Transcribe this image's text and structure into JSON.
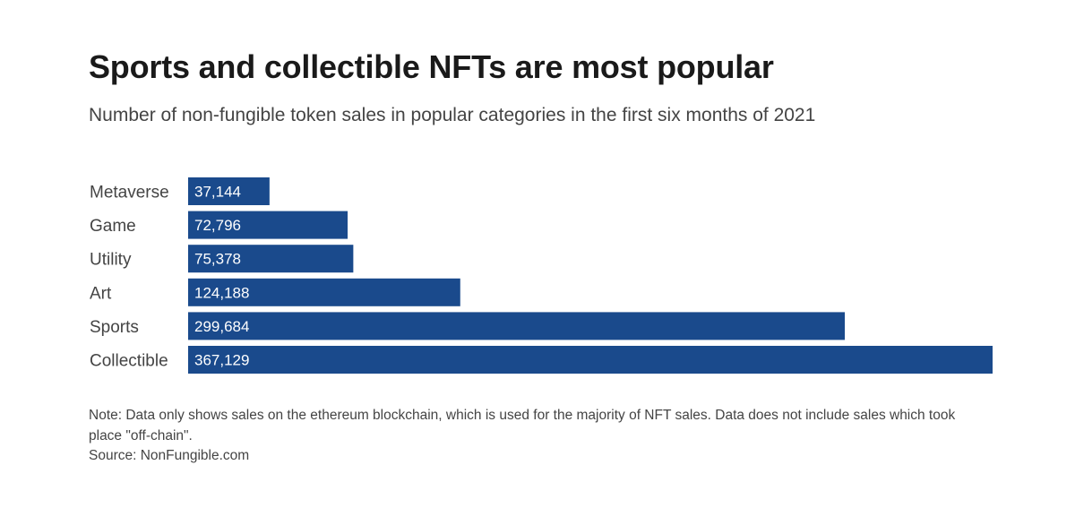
{
  "header": {
    "title": "Sports and collectible NFTs are most popular",
    "subtitle": "Number of non-fungible token sales in popular categories in the first six months of 2021"
  },
  "footer": {
    "note": "Note: Data only shows sales on the ethereum blockchain, which is used for the majority of NFT sales. Data does not include sales which took place \"off-chain\".",
    "source": "Source: NonFungible.com"
  },
  "colors": {
    "bar": "#1a4a8c",
    "value_text": "#ffffff"
  },
  "chart_data": {
    "type": "bar",
    "orientation": "horizontal",
    "title": "Sports and collectible NFTs are most popular",
    "subtitle": "Number of non-fungible token sales in popular categories in the first six months of 2021",
    "categories": [
      "Metaverse",
      "Game",
      "Utility",
      "Art",
      "Sports",
      "Collectible"
    ],
    "values": [
      37144,
      72796,
      75378,
      124188,
      299684,
      367129
    ],
    "value_labels": [
      "37,144",
      "72,796",
      "75,378",
      "124,188",
      "299,684",
      "367,129"
    ],
    "xlim": [
      0,
      367129
    ],
    "grid": false,
    "legend": "none"
  }
}
